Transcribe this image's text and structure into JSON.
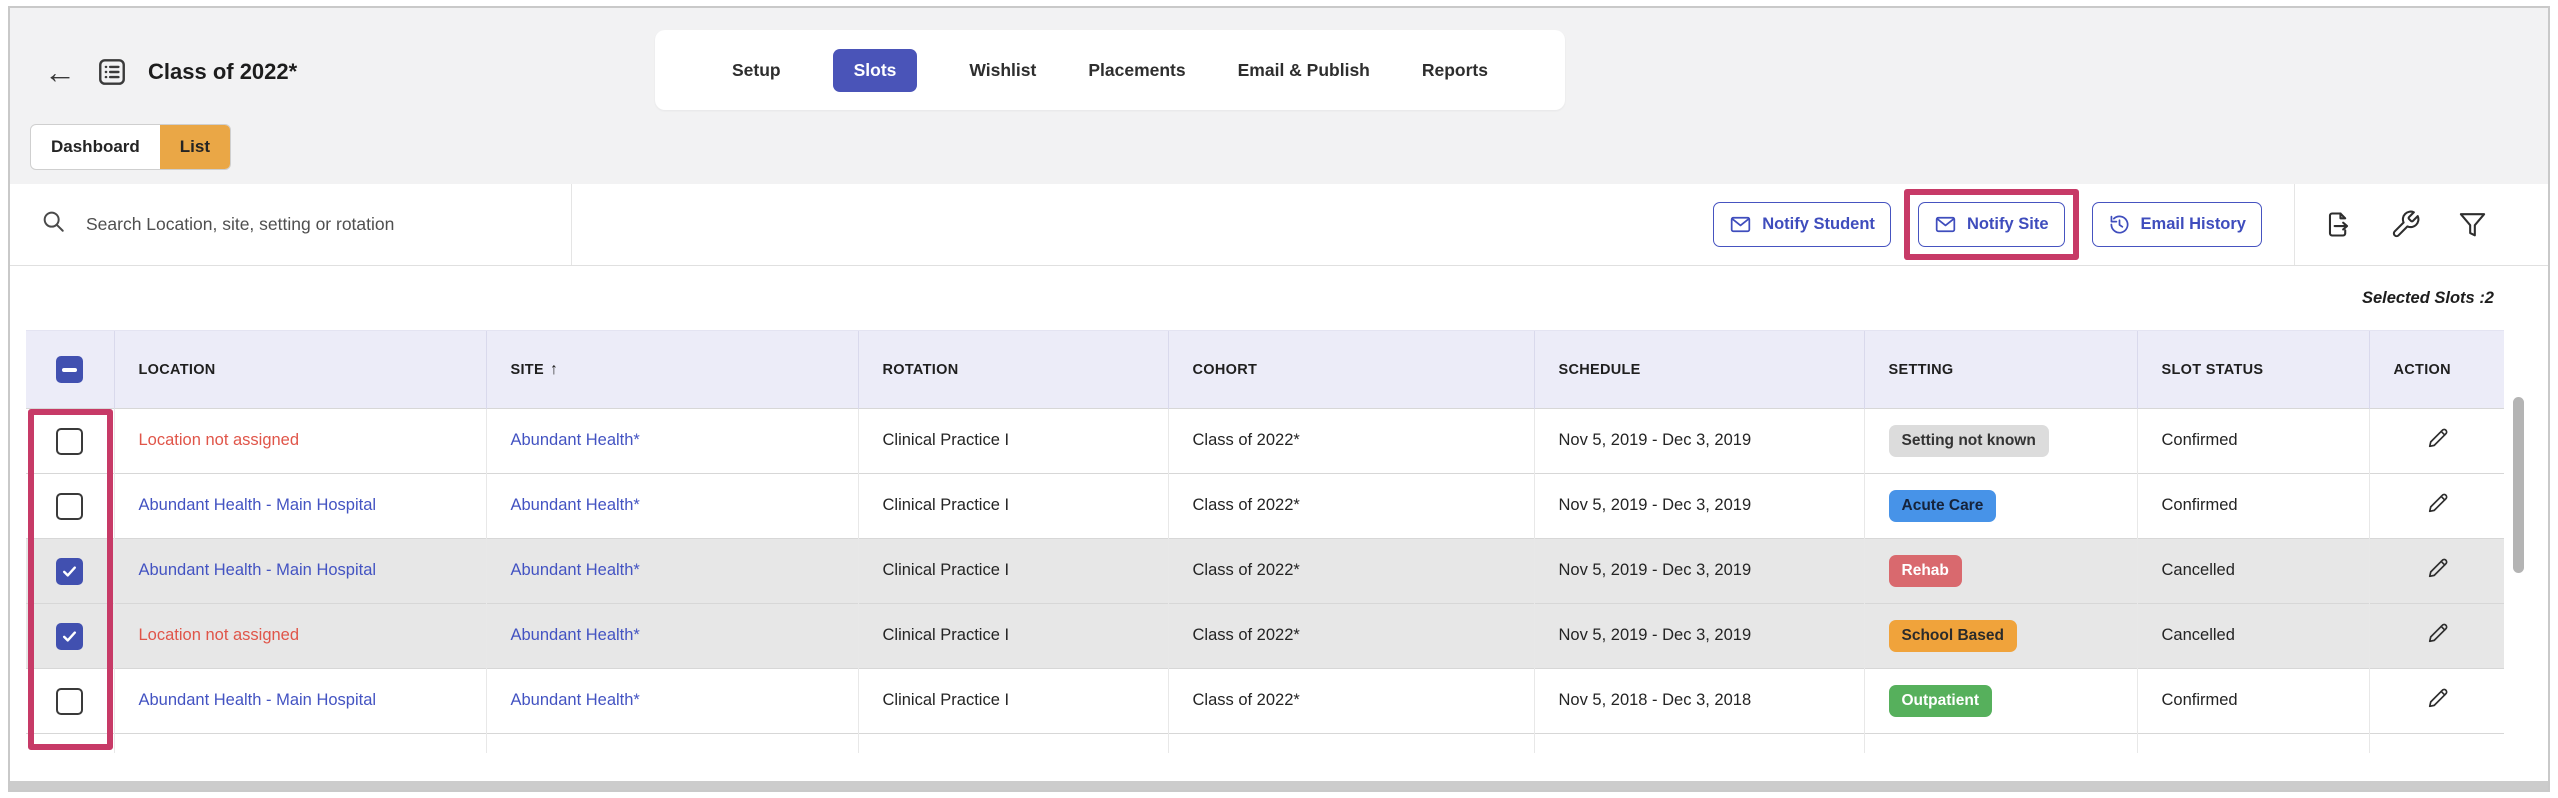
{
  "header": {
    "back_icon": "←",
    "title": "Class of 2022*",
    "nav_tabs": [
      {
        "label": "Setup",
        "active": false
      },
      {
        "label": "Slots",
        "active": true
      },
      {
        "label": "Wishlist",
        "active": false
      },
      {
        "label": "Placements",
        "active": false
      },
      {
        "label": "Email & Publish",
        "active": false
      },
      {
        "label": "Reports",
        "active": false
      }
    ],
    "view_tabs": [
      {
        "label": "Dashboard",
        "active": false
      },
      {
        "label": "List",
        "active": true
      }
    ]
  },
  "toolbar": {
    "search_placeholder": "Search Location, site, setting or rotation",
    "notify_student_label": "Notify Student",
    "notify_site_label": "Notify Site",
    "email_history_label": "Email History",
    "highlighted_button": "Notify Site"
  },
  "selection": {
    "summary": "Selected Slots :2",
    "selected_count": 2
  },
  "table": {
    "columns": [
      "LOCATION",
      "SITE",
      "ROTATION",
      "COHORT",
      "SCHEDULE",
      "SETTING",
      "SLOT STATUS",
      "ACTION"
    ],
    "sort": {
      "column": "SITE",
      "direction": "asc",
      "indicator": "↑"
    },
    "header_checkbox_state": "indeterminate",
    "rows": [
      {
        "selected": false,
        "location": {
          "text": "Location not assigned",
          "style": "loc-error"
        },
        "site": "Abundant Health*",
        "rotation": "Clinical Practice I",
        "cohort": "Class of 2022*",
        "schedule": "Nov 5, 2019 - Dec 3, 2019",
        "setting": {
          "label": "Setting not known",
          "bg": "#dcdcdc",
          "fg": "#333333"
        },
        "status": "Confirmed"
      },
      {
        "selected": false,
        "location": {
          "text": "Abundant Health - Main Hospital",
          "style": "loc-link"
        },
        "site": "Abundant Health*",
        "rotation": "Clinical Practice I",
        "cohort": "Class of 2022*",
        "schedule": "Nov 5, 2019 - Dec 3, 2019",
        "setting": {
          "label": "Acute Care",
          "bg": "#4793e8",
          "fg": "#16233a"
        },
        "status": "Confirmed"
      },
      {
        "selected": true,
        "location": {
          "text": "Abundant Health - Main Hospital",
          "style": "loc-link"
        },
        "site": "Abundant Health*",
        "rotation": "Clinical Practice I",
        "cohort": "Class of 2022*",
        "schedule": "Nov 5, 2019 - Dec 3, 2019",
        "setting": {
          "label": "Rehab",
          "bg": "#d9696e",
          "fg": "#ffffff"
        },
        "status": "Cancelled"
      },
      {
        "selected": true,
        "location": {
          "text": "Location not assigned",
          "style": "loc-error"
        },
        "site": "Abundant Health*",
        "rotation": "Clinical Practice I",
        "cohort": "Class of 2022*",
        "schedule": "Nov 5, 2019 - Dec 3, 2019",
        "setting": {
          "label": "School Based",
          "bg": "#f0a33b",
          "fg": "#2b2b2b"
        },
        "status": "Cancelled"
      },
      {
        "selected": false,
        "location": {
          "text": "Abundant Health - Main Hospital",
          "style": "loc-link"
        },
        "site": "Abundant Health*",
        "rotation": "Clinical Practice I",
        "cohort": "Class of 2022*",
        "schedule": "Nov 5, 2018 - Dec 3, 2018",
        "setting": {
          "label": "Outpatient",
          "bg": "#56b05c",
          "fg": "#ffffff"
        },
        "status": "Confirmed"
      }
    ]
  },
  "colors": {
    "accent_indigo": "#4a54b8",
    "accent_orange": "#eaa746",
    "annotation_pink": "#c73a67",
    "link_blue": "#4353c2",
    "error_red": "#e05549",
    "header_lavender": "#ececf8",
    "selected_row_gray": "#e7e7e7"
  }
}
